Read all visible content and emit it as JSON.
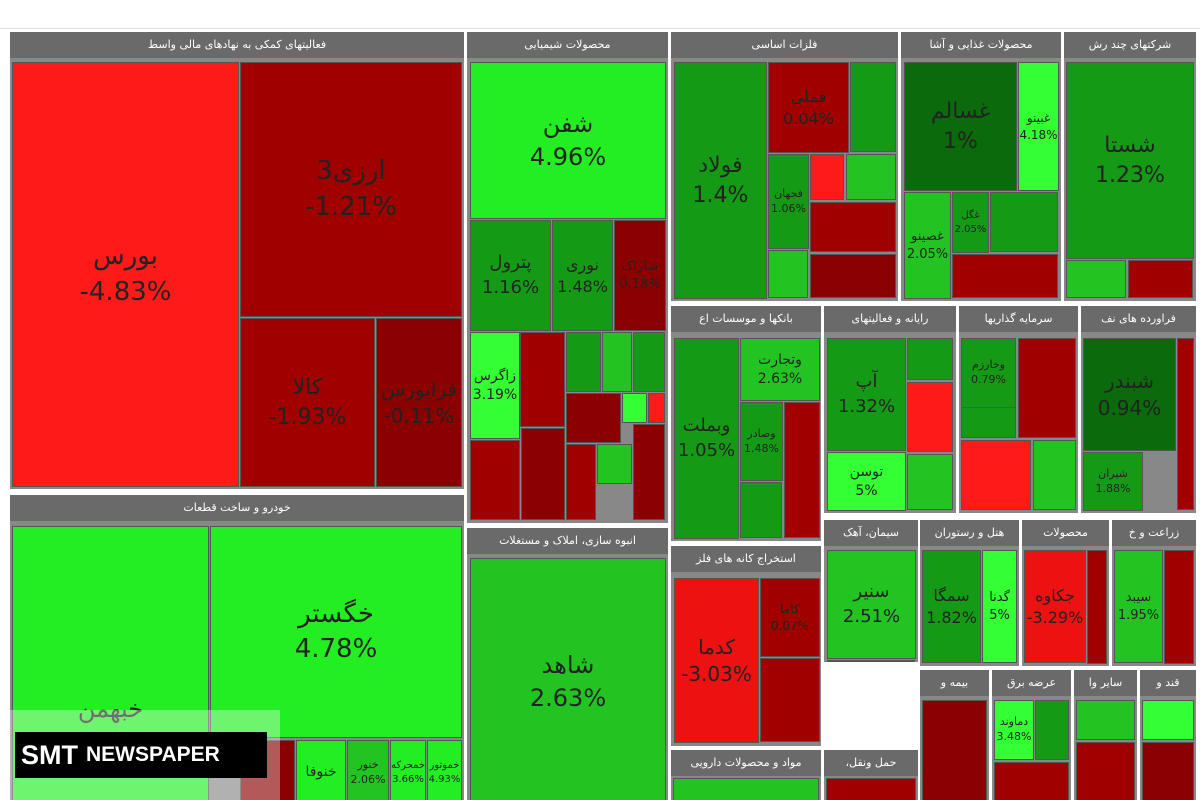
{
  "sectors": [
    {
      "title": "فعالیتهای کمکی به نهادهای مالی واسط",
      "tiles": [
        {
          "name": "بورس",
          "change": "-4.83%"
        },
        {
          "name": "ارزی3",
          "change": "-1.21%"
        },
        {
          "name": "کالا",
          "change": "-1.93%"
        },
        {
          "name": "فرابورس",
          "change": "-0.11%"
        }
      ]
    },
    {
      "title": "خودرو و ساخت قطعات",
      "tiles": [
        {
          "name": "خگستر",
          "change": "4.78%"
        },
        {
          "name": "خبهمن"
        },
        {
          "name": "خنوفا"
        },
        {
          "name": "خنور",
          "change": "2.06%"
        },
        {
          "name": "خمحرکه",
          "change": "3.66%"
        },
        {
          "name": "خموتور",
          "change": "4.93%"
        }
      ]
    },
    {
      "title": "محصولات شیمیایی",
      "tiles": [
        {
          "name": "شفن",
          "change": "4.96%"
        },
        {
          "name": "پترول",
          "change": "1.16%"
        },
        {
          "name": "نوری",
          "change": "1.48%"
        },
        {
          "name": "شاراک",
          "change": "0.18%"
        },
        {
          "name": "زاگرس",
          "change": "3.19%"
        }
      ]
    },
    {
      "title": "انبوه سازی، املاک و مستغلات",
      "tiles": [
        {
          "name": "شاهد",
          "change": "2.63%"
        }
      ]
    },
    {
      "title": "فلزات اساسی",
      "tiles": [
        {
          "name": "فولاد",
          "change": "1.4%"
        },
        {
          "name": "فملی",
          "change": "0.04%"
        },
        {
          "name": "فجهان",
          "change": "1.06%"
        }
      ]
    },
    {
      "title": "محصولات غذایی و آشا",
      "tiles": [
        {
          "name": "غسالم",
          "change": "1%"
        },
        {
          "name": "غبینو",
          "change": "4.18%"
        },
        {
          "name": "غصینو",
          "change": "2.05%"
        },
        {
          "name": "غگل",
          "change": "2.05%"
        }
      ]
    },
    {
      "title": "شرکتهای چند رش",
      "tiles": [
        {
          "name": "شستا",
          "change": "1.23%"
        }
      ]
    },
    {
      "title": "بانکها و موسسات اع",
      "tiles": [
        {
          "name": "وبملت",
          "change": "1.05%"
        },
        {
          "name": "وتجارت",
          "change": "2.63%"
        },
        {
          "name": "وصادر",
          "change": "1.48%"
        }
      ]
    },
    {
      "title": "رایانه و فعالیتهای",
      "tiles": [
        {
          "name": "آپ",
          "change": "1.32%"
        },
        {
          "name": "توسن",
          "change": "5%"
        }
      ]
    },
    {
      "title": "سرمایه گذاریها",
      "tiles": [
        {
          "name": "وخارزم",
          "change": "0.79%"
        }
      ]
    },
    {
      "title": "فراورده های نف",
      "tiles": [
        {
          "name": "شبندر",
          "change": "0.94%"
        },
        {
          "name": "شیران",
          "change": "1.88%"
        }
      ]
    },
    {
      "title": "استخراج کانه های فلز",
      "tiles": [
        {
          "name": "کدما",
          "change": "-3.03%"
        },
        {
          "name": "کاما",
          "change": "0.07%"
        }
      ]
    },
    {
      "title": "سیمان، آهک",
      "tiles": [
        {
          "name": "سنیر",
          "change": "2.51%"
        }
      ]
    },
    {
      "title": "هتل و رستوران",
      "tiles": [
        {
          "name": "سمگا",
          "change": "1.82%"
        },
        {
          "name": "گدنا",
          "change": "5%"
        }
      ]
    },
    {
      "title": "محصولات",
      "tiles": [
        {
          "name": "جکاوه",
          "change": "-3.29%"
        }
      ]
    },
    {
      "title": "زراعت و خ",
      "tiles": [
        {
          "name": "سیبد",
          "change": "1.95%"
        }
      ]
    },
    {
      "title": "مواد و محصولات دارویی"
    },
    {
      "title": "حمل ونقل،"
    },
    {
      "title": "بیمه و"
    },
    {
      "title": "عرضه برق",
      "tiles": [
        {
          "name": "دماوند",
          "change": "3.48%"
        }
      ]
    },
    {
      "title": "ساير وا"
    },
    {
      "title": "قند و"
    }
  ],
  "brand": [
    "SMT",
    "NEWSPAPER"
  ]
}
